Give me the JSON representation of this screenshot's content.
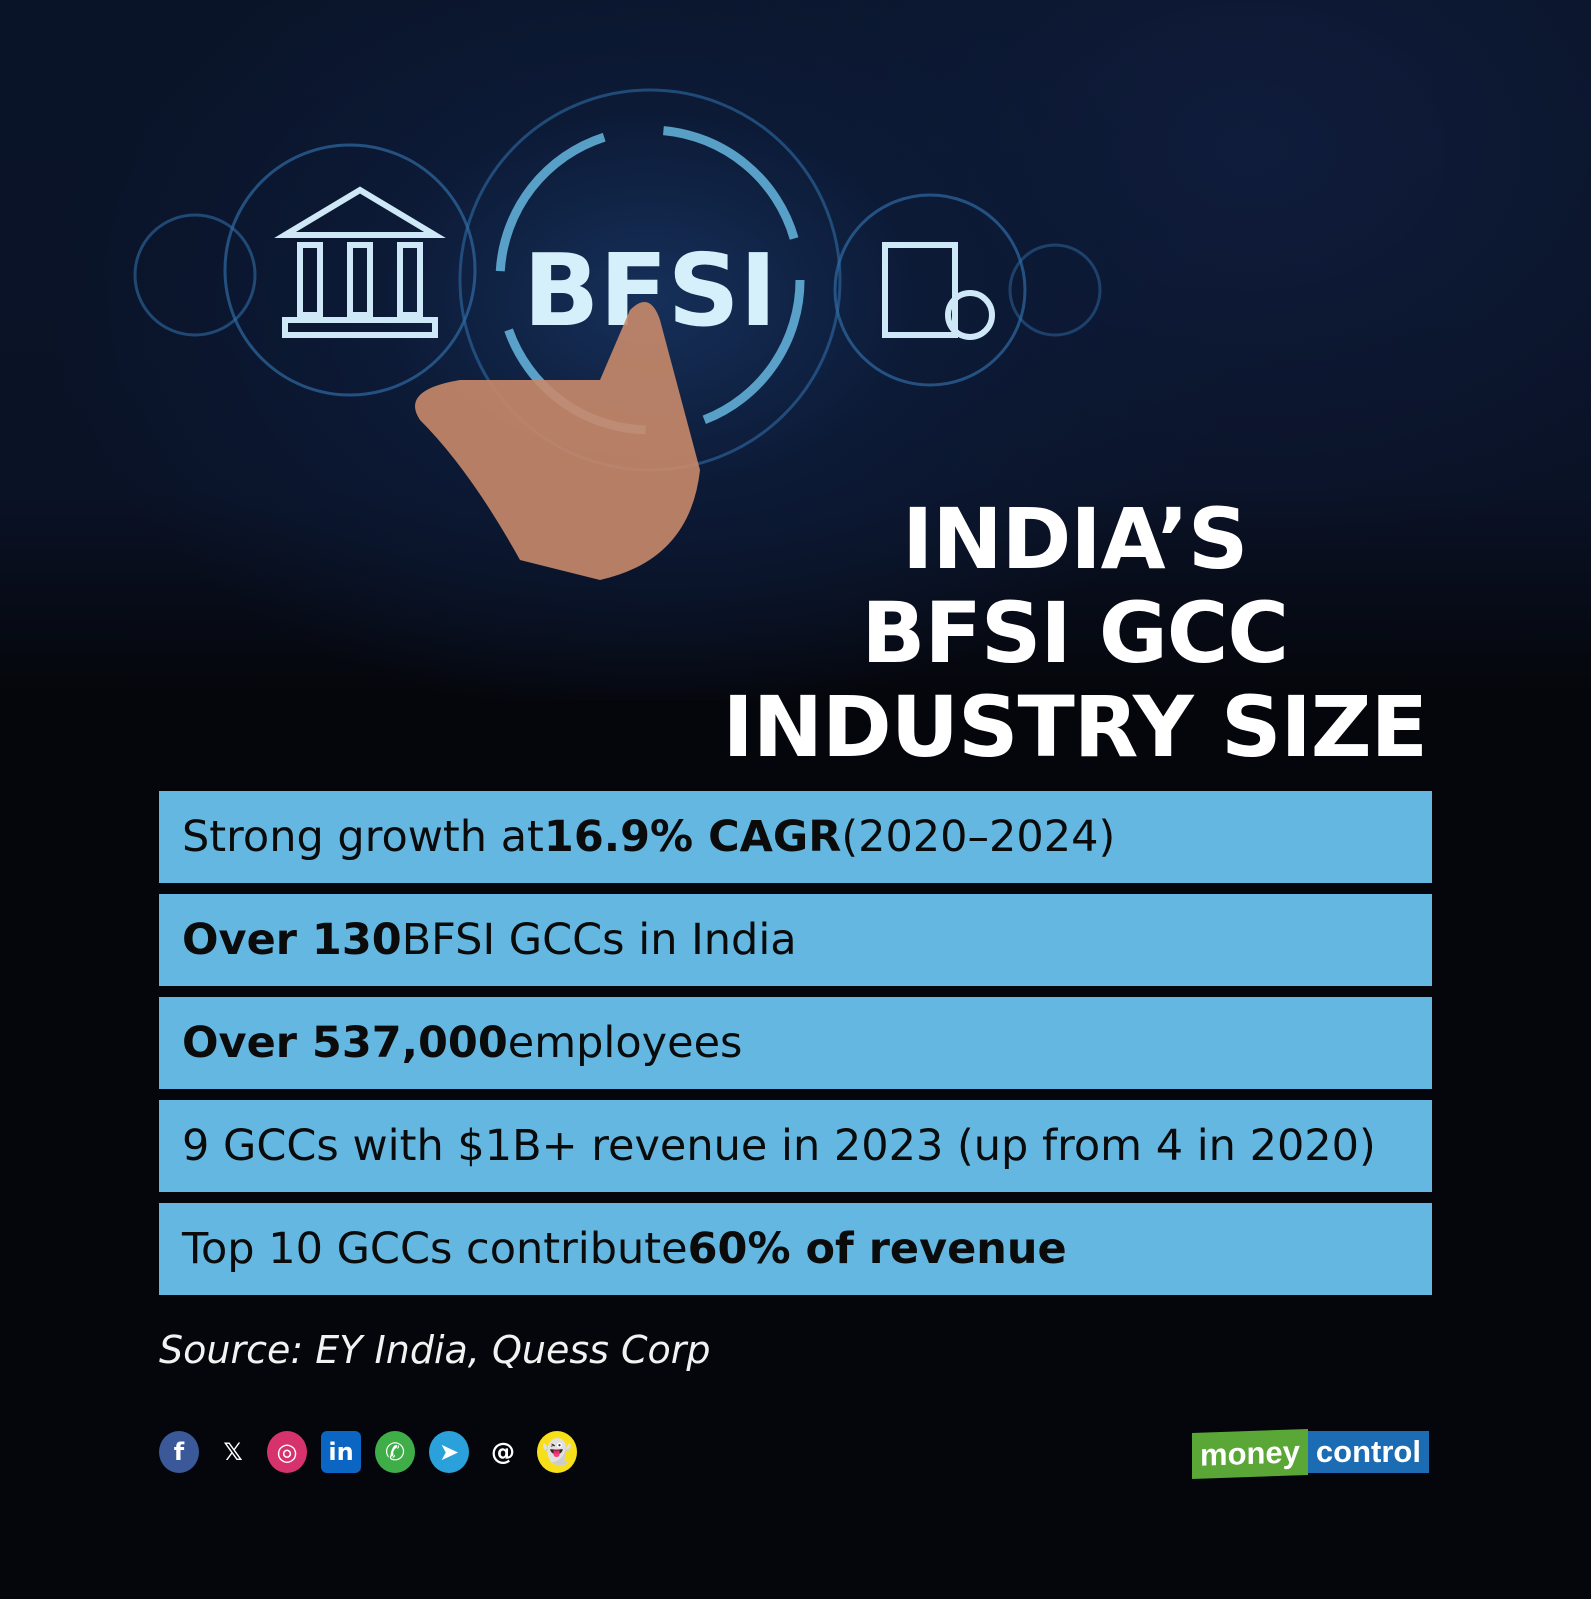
{
  "hero": {
    "badge_text": "BFSI"
  },
  "title": {
    "lines": [
      "INDIA’S",
      "BFSI GCC",
      "INDUSTRY SIZE"
    ]
  },
  "facts": [
    {
      "pre": "Strong growth at ",
      "bold": "16.9% CAGR",
      "post": " (2020–2024)"
    },
    {
      "pre": "",
      "bold": "Over 130",
      "post": " BFSI GCCs in India"
    },
    {
      "pre": "",
      "bold": "Over 537,000",
      "post": " employees"
    },
    {
      "pre": "9 GCCs with $1B+ revenue in 2023 (up from 4 in 2020)",
      "bold": "",
      "post": ""
    },
    {
      "pre": "Top 10 GCCs contribute ",
      "bold": "60% of revenue",
      "post": ""
    }
  ],
  "source": "Source: EY India, Quess Corp",
  "social": [
    {
      "icon": "facebook-icon",
      "glyph": "f",
      "color": "#3b5998"
    },
    {
      "icon": "x-icon",
      "glyph": "𝕏",
      "color": "#05060b"
    },
    {
      "icon": "instagram-icon",
      "glyph": "◎",
      "color": "#d6336c"
    },
    {
      "icon": "linkedin-icon",
      "glyph": "in",
      "color": "#0a66c2"
    },
    {
      "icon": "whatsapp-icon",
      "glyph": "✆",
      "color": "#3fae49"
    },
    {
      "icon": "telegram-icon",
      "glyph": "➤",
      "color": "#2aa1da"
    },
    {
      "icon": "threads-icon",
      "glyph": "@",
      "color": "#05060b"
    },
    {
      "icon": "snapchat-icon",
      "glyph": "👻",
      "color": "#f7e01a"
    }
  ],
  "logo": {
    "part1": "money",
    "part2": "control"
  },
  "colors": {
    "row_bg": "#64b7e1",
    "background": "#05060b",
    "logo_green": "#5aa637",
    "logo_blue": "#1b6cb3"
  }
}
